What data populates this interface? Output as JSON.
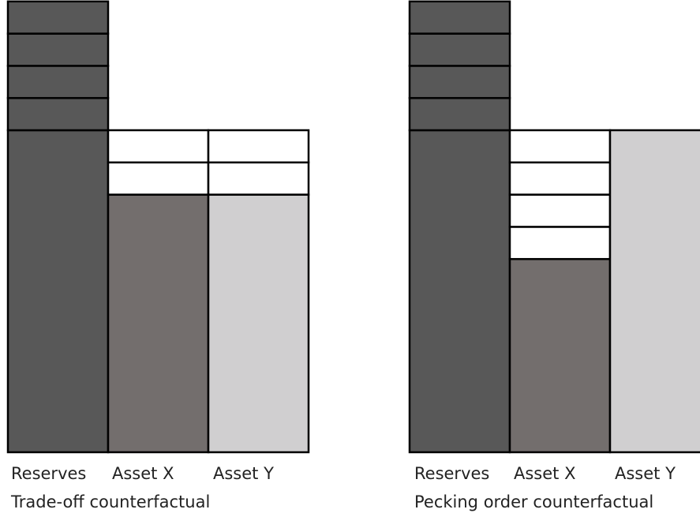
{
  "colors": {
    "reserves": "#585858",
    "asset_x": "#736e6d",
    "asset_y": "#d0cfd0",
    "empty_block": "#ffffff",
    "outline": "#000000"
  },
  "panels": [
    {
      "caption": "Trade-off counterfactual",
      "columns": [
        {
          "label": "Reserves",
          "filled": 10,
          "empty": 0,
          "fill_key": "reserves"
        },
        {
          "label": "Asset X",
          "filled": 8,
          "empty": 2,
          "fill_key": "asset_x"
        },
        {
          "label": "Asset Y",
          "filled": 8,
          "empty": 2,
          "fill_key": "asset_y"
        }
      ],
      "stacked_blocks_above": 4
    },
    {
      "caption": "Pecking order counterfactual",
      "columns": [
        {
          "label": "Reserves",
          "filled": 10,
          "empty": 0,
          "fill_key": "reserves"
        },
        {
          "label": "Asset X",
          "filled": 6,
          "empty": 4,
          "fill_key": "asset_x"
        },
        {
          "label": "Asset Y",
          "filled": 10,
          "empty": 0,
          "fill_key": "asset_y"
        }
      ],
      "stacked_blocks_above": 4
    }
  ]
}
